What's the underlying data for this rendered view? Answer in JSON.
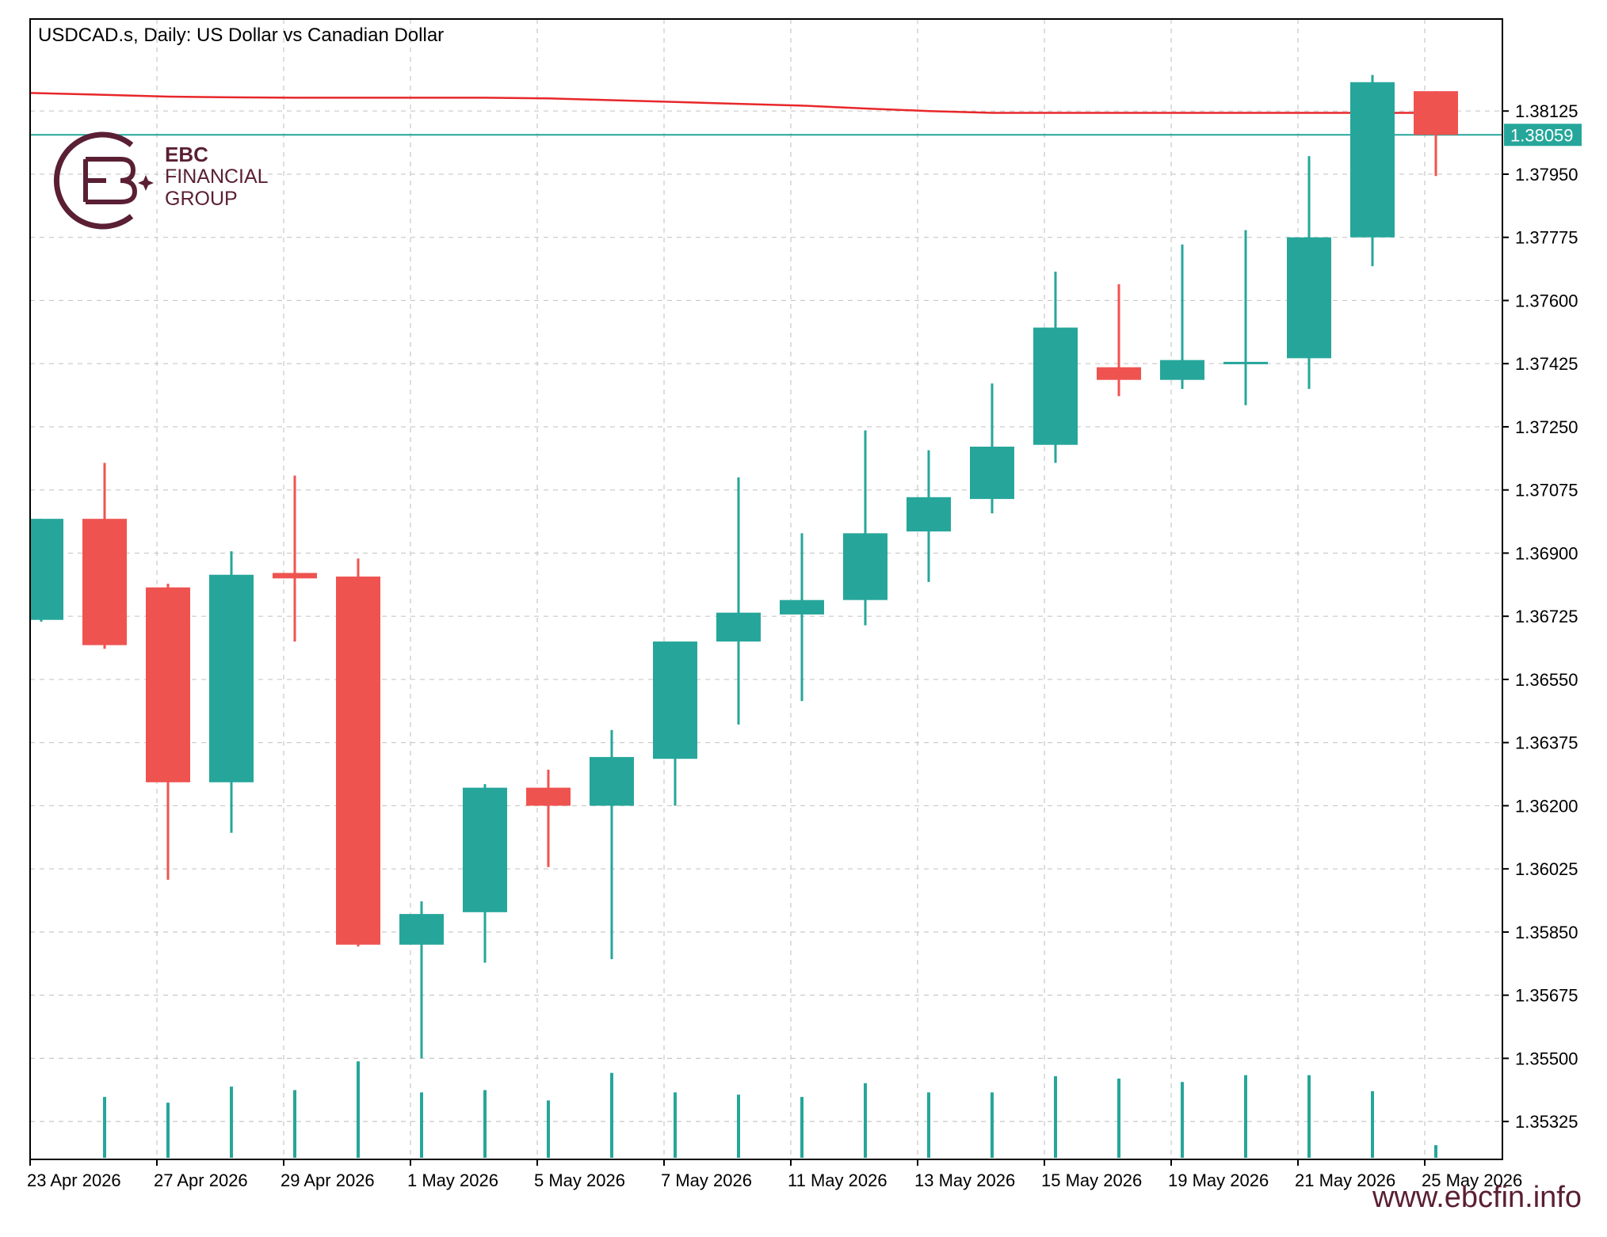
{
  "header": {
    "title": "USDCAD.s, Daily:  US Dollar vs Canadian Dollar"
  },
  "logo": {
    "line1": "EBC",
    "line2": "FINANCIAL",
    "line3": "GROUP"
  },
  "footer": {
    "website": "www.ebcfin.info"
  },
  "colors": {
    "bull": "#26a69a",
    "bear": "#ef5350",
    "ma_line": "#e8272a",
    "price_line": "#26a69a",
    "brand": "#5a1f34",
    "grid": "#c8c8c8"
  },
  "chart_data": {
    "type": "candlestick",
    "title": "USDCAD.s, Daily:  US Dollar vs Canadian Dollar",
    "ylim": [
      1.3522,
      1.3838
    ],
    "y_ticks": [
      "1.38125",
      "1.37950",
      "1.37775",
      "1.37600",
      "1.37425",
      "1.37250",
      "1.37075",
      "1.36900",
      "1.36725",
      "1.36550",
      "1.36375",
      "1.36200",
      "1.36025",
      "1.35850",
      "1.35675",
      "1.35500",
      "1.35325"
    ],
    "x_tick_labels": [
      "23 Apr 2026",
      "27 Apr 2026",
      "29 Apr 2026",
      "1 May 2026",
      "5 May 2026",
      "7 May 2026",
      "11 May 2026",
      "13 May 2026",
      "15 May 2026",
      "19 May 2026",
      "21 May 2026",
      "25 May 2026"
    ],
    "current_price": "1.38059",
    "candles": [
      {
        "date": "22 Apr 2026",
        "open": 1.36715,
        "high": 1.36995,
        "low": 1.3671,
        "close": 1.36995,
        "partial": true
      },
      {
        "date": "23 Apr 2026",
        "open": 1.36995,
        "high": 1.3715,
        "low": 1.36635,
        "close": 1.36645
      },
      {
        "date": "24 Apr 2026",
        "open": 1.36805,
        "high": 1.36815,
        "low": 1.35995,
        "close": 1.36265
      },
      {
        "date": "27 Apr 2026",
        "open": 1.36265,
        "high": 1.36905,
        "low": 1.36125,
        "close": 1.3684
      },
      {
        "date": "28 Apr 2026",
        "open": 1.36845,
        "high": 1.37115,
        "low": 1.36655,
        "close": 1.3683
      },
      {
        "date": "29 Apr 2026",
        "open": 1.36835,
        "high": 1.36885,
        "low": 1.3581,
        "close": 1.35815
      },
      {
        "date": "30 Apr 2026",
        "open": 1.35815,
        "high": 1.35935,
        "low": 1.355,
        "close": 1.359
      },
      {
        "date": "1 May 2026",
        "open": 1.35905,
        "high": 1.3626,
        "low": 1.35765,
        "close": 1.3625
      },
      {
        "date": "4 May 2026",
        "open": 1.3625,
        "high": 1.363,
        "low": 1.3603,
        "close": 1.362
      },
      {
        "date": "5 May 2026",
        "open": 1.362,
        "high": 1.3641,
        "low": 1.35775,
        "close": 1.36335
      },
      {
        "date": "6 May 2026",
        "open": 1.3633,
        "high": 1.36655,
        "low": 1.362,
        "close": 1.36655
      },
      {
        "date": "7 May 2026",
        "open": 1.36655,
        "high": 1.3711,
        "low": 1.36425,
        "close": 1.36735
      },
      {
        "date": "8 May 2026",
        "open": 1.3673,
        "high": 1.36955,
        "low": 1.3649,
        "close": 1.3677
      },
      {
        "date": "11 May 2026",
        "open": 1.3677,
        "high": 1.3724,
        "low": 1.367,
        "close": 1.36955
      },
      {
        "date": "12 May 2026",
        "open": 1.3696,
        "high": 1.37185,
        "low": 1.3682,
        "close": 1.37055
      },
      {
        "date": "13 May 2026",
        "open": 1.3705,
        "high": 1.3737,
        "low": 1.3701,
        "close": 1.37195
      },
      {
        "date": "14 May 2026",
        "open": 1.372,
        "high": 1.3768,
        "low": 1.3715,
        "close": 1.37525
      },
      {
        "date": "15 May 2026",
        "open": 1.37415,
        "high": 1.37645,
        "low": 1.37335,
        "close": 1.3738
      },
      {
        "date": "18 May 2026",
        "open": 1.3738,
        "high": 1.37755,
        "low": 1.37355,
        "close": 1.37435
      },
      {
        "date": "19 May 2026",
        "open": 1.37425,
        "high": 1.37795,
        "low": 1.3731,
        "close": 1.3743
      },
      {
        "date": "20 May 2026",
        "open": 1.3744,
        "high": 1.38,
        "low": 1.37355,
        "close": 1.37775
      },
      {
        "date": "21 May 2026",
        "open": 1.37775,
        "high": 1.38225,
        "low": 1.37695,
        "close": 1.38205
      },
      {
        "date": "22 May 2026",
        "open": 1.3818,
        "high": 1.3818,
        "low": 1.37945,
        "close": 1.38059
      }
    ],
    "volume_levels": [
      0,
      0.53,
      0.48,
      0.62,
      0.59,
      0.84,
      0.57,
      0.59,
      0.5,
      0.74,
      0.57,
      0.55,
      0.53,
      0.65,
      0.57,
      0.57,
      0.71,
      0.69,
      0.66,
      0.72,
      0.72,
      0.58,
      0.11
    ],
    "moving_average": [
      {
        "date": "22 Apr 2026",
        "value": 1.38175
      },
      {
        "date": "23 Apr 2026",
        "value": 1.3817
      },
      {
        "date": "24 Apr 2026",
        "value": 1.38165
      },
      {
        "date": "27 Apr 2026",
        "value": 1.38163
      },
      {
        "date": "28 Apr 2026",
        "value": 1.38162
      },
      {
        "date": "29 Apr 2026",
        "value": 1.38162
      },
      {
        "date": "30 Apr 2026",
        "value": 1.38162
      },
      {
        "date": "1 May 2026",
        "value": 1.38162
      },
      {
        "date": "4 May 2026",
        "value": 1.3816
      },
      {
        "date": "5 May 2026",
        "value": 1.38155
      },
      {
        "date": "6 May 2026",
        "value": 1.3815
      },
      {
        "date": "7 May 2026",
        "value": 1.38145
      },
      {
        "date": "8 May 2026",
        "value": 1.3814
      },
      {
        "date": "11 May 2026",
        "value": 1.38132
      },
      {
        "date": "12 May 2026",
        "value": 1.38125
      },
      {
        "date": "13 May 2026",
        "value": 1.3812
      },
      {
        "date": "14 May 2026",
        "value": 1.3812
      },
      {
        "date": "15 May 2026",
        "value": 1.3812
      },
      {
        "date": "18 May 2026",
        "value": 1.3812
      },
      {
        "date": "19 May 2026",
        "value": 1.3812
      },
      {
        "date": "20 May 2026",
        "value": 1.3812
      },
      {
        "date": "21 May 2026",
        "value": 1.3812
      },
      {
        "date": "22 May 2026",
        "value": 1.3812
      }
    ],
    "grid": true
  }
}
